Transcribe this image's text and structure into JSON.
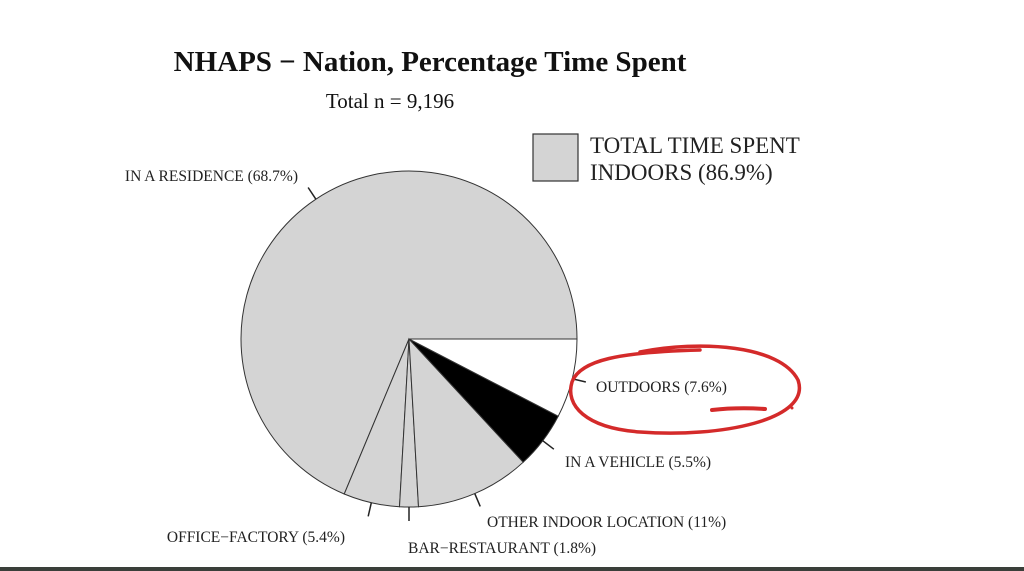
{
  "chart_data": {
    "type": "pie",
    "title": "NHAPS − Nation, Percentage Time Spent",
    "subtitle": "Total n = 9,196",
    "legend": {
      "line1": "TOTAL TIME SPENT",
      "line2": "INDOORS (86.9%)",
      "color": "#d4d4d4",
      "placement": "top-right"
    },
    "slices": [
      {
        "label": "IN A RESIDENCE (68.7%)",
        "value": 68.7,
        "color": "#d4d4d4"
      },
      {
        "label": "OFFICE−FACTORY (5.4%)",
        "value": 5.4,
        "color": "#d4d4d4"
      },
      {
        "label": "BAR−RESTAURANT (1.8%)",
        "value": 1.8,
        "color": "#d4d4d4"
      },
      {
        "label": "OTHER INDOOR LOCATION (11%)",
        "value": 11.0,
        "color": "#d4d4d4"
      },
      {
        "label": "IN A VEHICLE (5.5%)",
        "value": 5.5,
        "color": "#000000"
      },
      {
        "label": "OUTDOORS (7.6%)",
        "value": 7.6,
        "color": "#ffffff"
      }
    ],
    "annotation": {
      "target": "OUTDOORS (7.6%)",
      "style": "red-circle-underline",
      "color": "#d42a2a"
    }
  }
}
